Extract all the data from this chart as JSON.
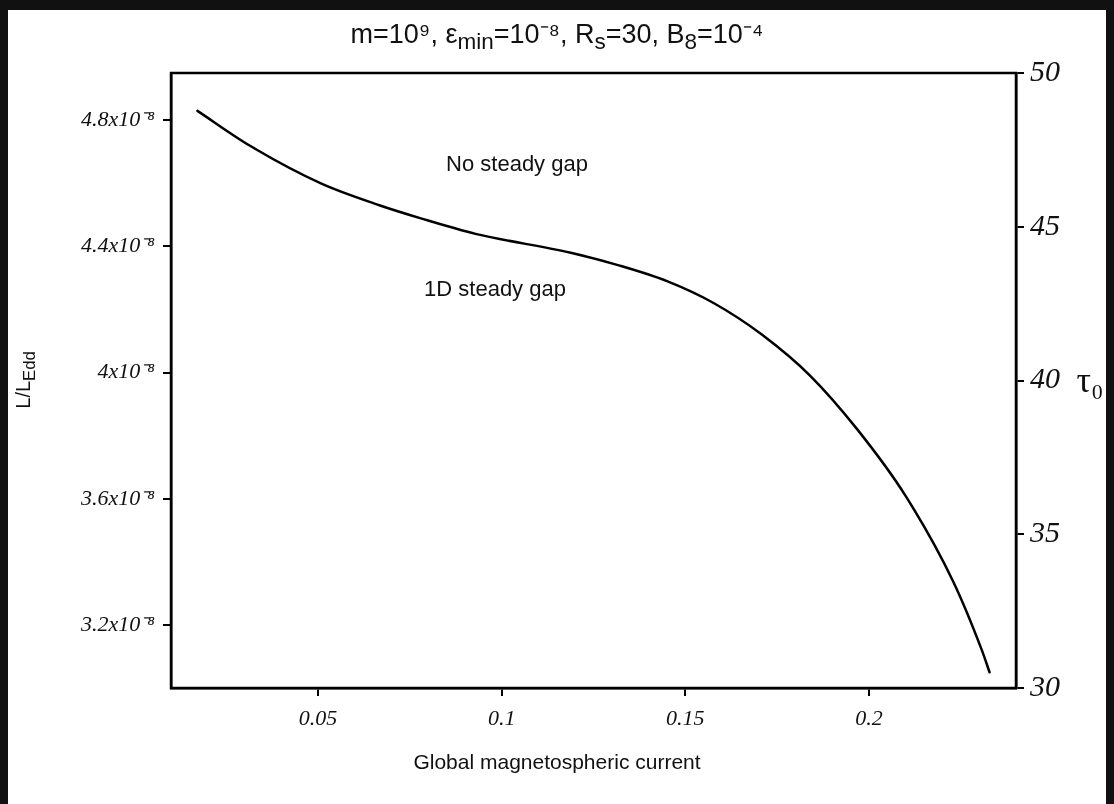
{
  "chart_data": {
    "type": "line",
    "title": "m=10⁹, ε$_{min}$=10⁻⁸, R$_{s}$=30, B$_{8}$=10⁻⁴",
    "xlabel": "Global magnetospheric current",
    "ylabel": "L/L$_{Edd}$",
    "y2label": "τ₀",
    "x": [
      0.0172,
      0.0314,
      0.0508,
      0.0669,
      0.0778,
      0.0929,
      0.1188,
      0.1319,
      0.145,
      0.1578,
      0.1709,
      0.184,
      0.1968,
      0.2099,
      0.2228,
      0.2307,
      0.2328
    ],
    "series": [
      {
        "color": "#000000",
        "values": [
          4.83e-08,
          4.72e-08,
          4.6e-08,
          4.53e-08,
          4.49e-08,
          4.44e-08,
          4.38e-08,
          4.34e-08,
          4.29e-08,
          4.22e-08,
          4.12e-08,
          3.99e-08,
          3.82e-08,
          3.61e-08,
          3.34e-08,
          3.12e-08,
          3.05e-08
        ]
      }
    ],
    "xlim": [
      0.01,
      0.24
    ],
    "xticks": [
      0.05,
      0.1,
      0.15,
      0.2
    ],
    "ylim": [
      3e-08,
      4.95e-08
    ],
    "yticks": [
      {
        "value": 3.2e-08,
        "label": "3.2x10⁻⁸"
      },
      {
        "value": 3.6e-08,
        "label": "3.6x10⁻⁸"
      },
      {
        "value": 4e-08,
        "label": "4x10⁻⁸"
      },
      {
        "value": 4.4e-08,
        "label": "4.4x10⁻⁸"
      },
      {
        "value": 4.8e-08,
        "label": "4.8x10⁻⁸"
      }
    ],
    "y2lim": [
      30,
      50
    ],
    "y2ticks": [
      30,
      35,
      40,
      45,
      50
    ],
    "annotations": [
      "No steady gap",
      "1D steady gap"
    ],
    "grid": false,
    "legend": false,
    "marker": "none",
    "line_style": "solid"
  }
}
